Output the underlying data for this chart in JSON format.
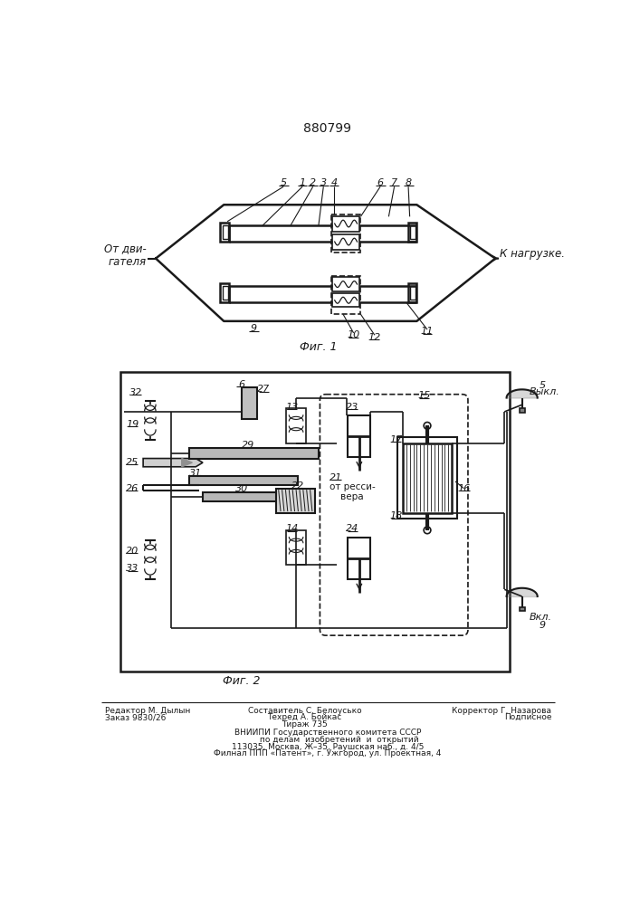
{
  "title": "880799",
  "title_fontsize": 10,
  "bg_color": "#f5f5f0",
  "line_color": "#1a1a1a",
  "text_color": "#1a1a1a",
  "fig1_caption": "Фиг. 1",
  "fig2_caption": "Фиг. 2",
  "from_engine": "От дви-\nгателя",
  "to_load": "К нагрузке.",
  "vyкl": "Выкл.",
  "vkl": "Вкл.",
  "ot_ressivera": "от ресси-\nвера",
  "footer_left1": "Редактор М. Дылын",
  "footer_left2": "Заказ 9830/26",
  "footer_mid1": "Составитель С. Белоусько",
  "footer_mid2": "Техред А. Бойкас",
  "footer_mid3": "Тираж 735",
  "footer_right1": "Корректор Г. Назарова",
  "footer_right2": "Подписное",
  "footer_vniipи": "ВНИИПИ Государственного комитета СССР",
  "footer_po": "         по делам  изобретений  и  открытий",
  "footer_addr": "113035, Москва, Ж–35, Раушская наб., д. 4/5",
  "footer_filial": "Филнал ППП «Патент», г. Ужгород, ул. Проектная, 4"
}
